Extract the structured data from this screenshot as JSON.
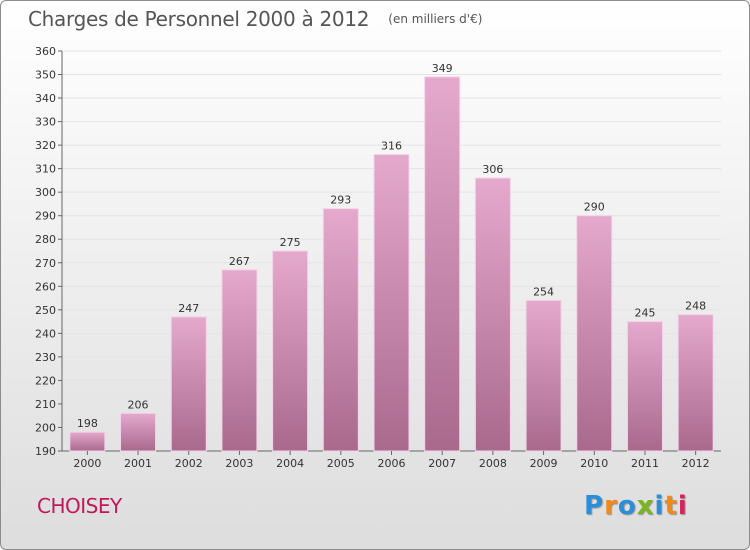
{
  "header": {
    "title": "Charges de Personnel 2000 à 2012",
    "subtitle": "(en milliers d'€)"
  },
  "footer": {
    "city": "CHOISEY",
    "logo": "Proxiti"
  },
  "colors": {
    "bar_light": "#e5a9cd",
    "bar_dark": "#a8698d",
    "city": "#c2185b",
    "logo_letters": [
      "#2a8fd8",
      "#f08a1c",
      "#2a8fd8",
      "#7ab51d",
      "#2a8fd8",
      "#f08a1c",
      "#d6235c"
    ]
  },
  "chart_data": {
    "type": "bar",
    "title": "Charges de Personnel 2000 à 2012",
    "subtitle": "(en milliers d'€)",
    "categories": [
      "2000",
      "2001",
      "2002",
      "2003",
      "2004",
      "2005",
      "2006",
      "2007",
      "2008",
      "2009",
      "2010",
      "2011",
      "2012"
    ],
    "values": [
      198,
      206,
      247,
      267,
      275,
      293,
      316,
      349,
      306,
      254,
      290,
      245,
      248
    ],
    "ylim": [
      190,
      360
    ],
    "ytick_step": 10,
    "grid": true,
    "legend": "none"
  }
}
